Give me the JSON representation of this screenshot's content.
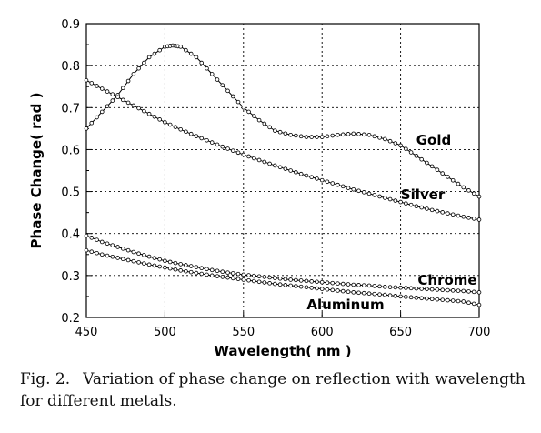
{
  "chart_data": {
    "type": "line",
    "title": "",
    "xlabel": "Wavelength( nm )",
    "ylabel": "Phase Change( rad )",
    "xlim": [
      450,
      700
    ],
    "ylim": [
      0.2,
      0.9
    ],
    "x_ticks": [
      450,
      500,
      550,
      600,
      650,
      700
    ],
    "y_ticks": [
      0.2,
      0.3,
      0.4,
      0.5,
      0.6,
      0.7,
      0.8,
      0.9
    ],
    "x_tick_labels": [
      "450",
      "500",
      "550",
      "600",
      "650",
      "700"
    ],
    "y_tick_labels": [
      "0.2",
      "0.3",
      "0.4",
      "0.5",
      "0.6",
      "0.7",
      "0.8",
      "0.9"
    ],
    "grid": true,
    "marker": "open-circle",
    "series": [
      {
        "name": "Gold",
        "x": [
          450,
          460,
          470,
          480,
          490,
          500,
          505,
          510,
          520,
          530,
          540,
          550,
          560,
          570,
          580,
          590,
          600,
          610,
          620,
          630,
          640,
          650,
          660,
          670,
          680,
          690,
          700
        ],
        "y": [
          0.65,
          0.69,
          0.73,
          0.78,
          0.82,
          0.845,
          0.848,
          0.845,
          0.82,
          0.78,
          0.74,
          0.7,
          0.67,
          0.645,
          0.635,
          0.63,
          0.63,
          0.635,
          0.638,
          0.635,
          0.625,
          0.61,
          0.585,
          0.56,
          0.535,
          0.51,
          0.488
        ]
      },
      {
        "name": "Silver",
        "x": [
          450,
          460,
          470,
          480,
          490,
          500,
          510,
          520,
          530,
          540,
          550,
          560,
          570,
          580,
          590,
          600,
          610,
          620,
          630,
          640,
          650,
          660,
          670,
          680,
          690,
          700
        ],
        "y": [
          0.765,
          0.745,
          0.725,
          0.705,
          0.685,
          0.665,
          0.648,
          0.632,
          0.617,
          0.602,
          0.588,
          0.575,
          0.562,
          0.55,
          0.538,
          0.527,
          0.516,
          0.505,
          0.495,
          0.485,
          0.475,
          0.465,
          0.456,
          0.448,
          0.44,
          0.433
        ]
      },
      {
        "name": "Chrome",
        "x": [
          450,
          460,
          470,
          480,
          490,
          500,
          510,
          520,
          530,
          540,
          550,
          560,
          570,
          580,
          590,
          600,
          610,
          620,
          630,
          640,
          650,
          660,
          670,
          680,
          690,
          700
        ],
        "y": [
          0.395,
          0.38,
          0.368,
          0.356,
          0.345,
          0.335,
          0.327,
          0.32,
          0.313,
          0.307,
          0.302,
          0.298,
          0.294,
          0.29,
          0.287,
          0.284,
          0.281,
          0.278,
          0.276,
          0.273,
          0.271,
          0.269,
          0.267,
          0.265,
          0.263,
          0.26
        ]
      },
      {
        "name": "Aluminum",
        "x": [
          450,
          460,
          470,
          480,
          490,
          500,
          510,
          520,
          530,
          540,
          550,
          560,
          570,
          580,
          590,
          600,
          610,
          620,
          630,
          640,
          650,
          660,
          670,
          680,
          690,
          700
        ],
        "y": [
          0.36,
          0.35,
          0.342,
          0.334,
          0.326,
          0.319,
          0.312,
          0.306,
          0.3,
          0.295,
          0.29,
          0.285,
          0.28,
          0.276,
          0.272,
          0.268,
          0.264,
          0.26,
          0.257,
          0.254,
          0.25,
          0.247,
          0.244,
          0.241,
          0.238,
          0.23
        ]
      }
    ]
  },
  "caption": {
    "label": "Fig. 2.",
    "text": "Variation of phase change on reflection with wavelength for different metals."
  }
}
